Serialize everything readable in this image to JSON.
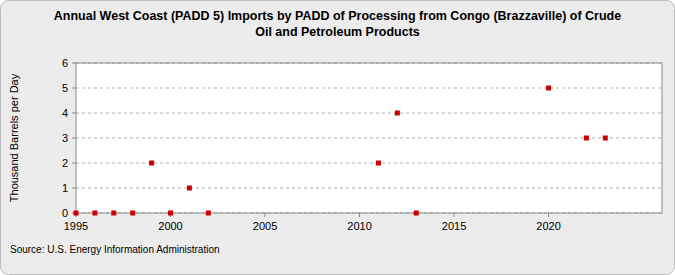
{
  "chart_data": {
    "type": "scatter",
    "title": "Annual West Coast (PADD 5) Imports by PADD of Processing from Congo (Brazzaville) of Crude\nOil and Petroleum Products",
    "y_label": "Thousand Barrels per Day",
    "source": "Source: U.S. Energy Information Administration",
    "x": [
      1995,
      1996,
      1997,
      1998,
      1999,
      2000,
      2001,
      2002,
      2011,
      2012,
      2013,
      2020,
      2022,
      2023
    ],
    "values": [
      0,
      0,
      0,
      0,
      2,
      0,
      1,
      0,
      2,
      4,
      0,
      5,
      3,
      3
    ],
    "color": "#cc0000",
    "marker": "square",
    "xlim": [
      1995,
      2026
    ],
    "xticks": [
      1995,
      2000,
      2005,
      2010,
      2015,
      2020
    ],
    "ylim": [
      0,
      6
    ],
    "yticks": [
      0,
      1,
      2,
      3,
      4,
      5,
      6
    ],
    "grid": true
  }
}
